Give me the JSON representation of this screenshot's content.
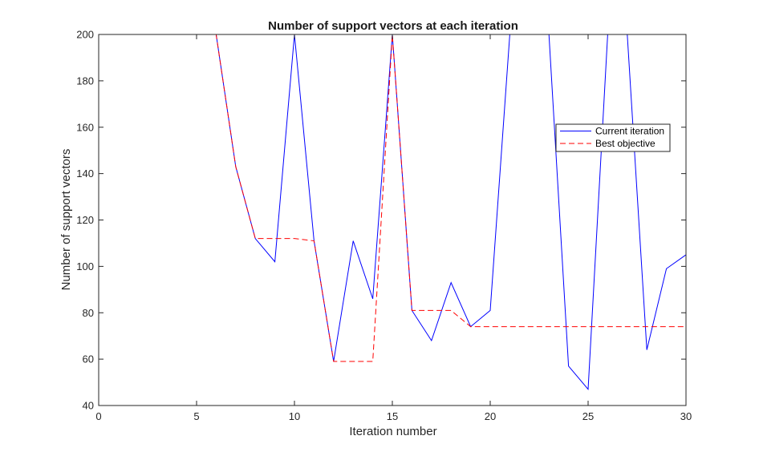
{
  "chart_data": {
    "type": "line",
    "title": "Number of support vectors at each iteration",
    "xlabel": "Iteration number",
    "ylabel": "Number of support vectors",
    "xlim": [
      0,
      30
    ],
    "ylim": [
      40,
      200
    ],
    "xticks": [
      0,
      5,
      10,
      15,
      20,
      25,
      30
    ],
    "yticks": [
      40,
      60,
      80,
      100,
      120,
      140,
      160,
      180,
      200
    ],
    "grid": false,
    "legend_position": "top-right",
    "x": [
      1,
      2,
      3,
      4,
      5,
      6,
      7,
      8,
      9,
      10,
      11,
      12,
      13,
      14,
      15,
      16,
      17,
      18,
      19,
      20,
      21,
      22,
      23,
      24,
      25,
      26,
      27,
      28,
      29,
      30
    ],
    "series": [
      {
        "name": "Current iteration",
        "color": "#0000ff",
        "style": "solid",
        "values": [
          200,
          200,
          200,
          200,
          200,
          200,
          143,
          112,
          102,
          200,
          111,
          59,
          111,
          86,
          200,
          81,
          68,
          93,
          74,
          81,
          200,
          200,
          200,
          57,
          47,
          200,
          200,
          64,
          99,
          105
        ]
      },
      {
        "name": "Best objective",
        "color": "#ff0000",
        "style": "dashed",
        "values": [
          200,
          200,
          200,
          200,
          200,
          200,
          143,
          112,
          112,
          112,
          111,
          59,
          59,
          59,
          200,
          81,
          81,
          81,
          74,
          74,
          74,
          74,
          74,
          74,
          74,
          74,
          74,
          74,
          74,
          74
        ]
      }
    ]
  }
}
